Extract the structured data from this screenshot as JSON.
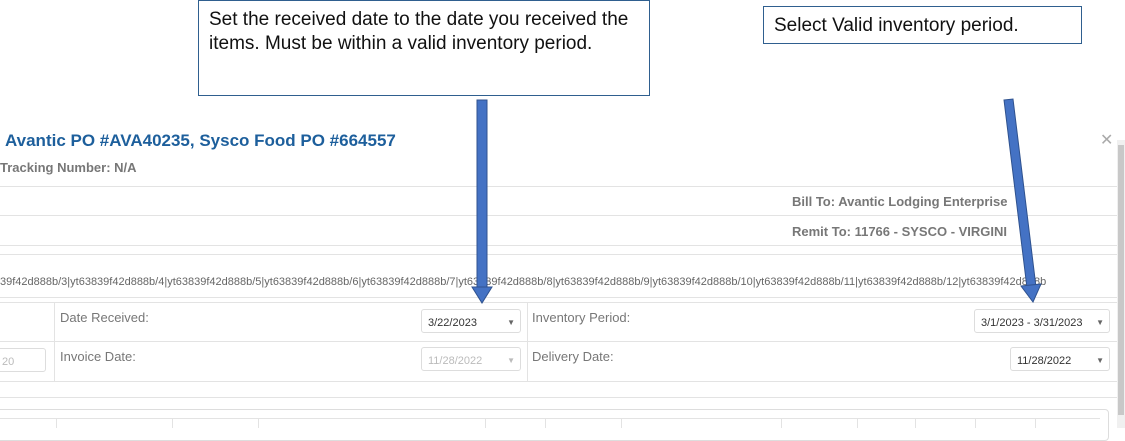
{
  "callouts": [
    {
      "text": "Set the received date to the date you received the items. Must be within a valid inventory period."
    },
    {
      "text": "Select Valid inventory period."
    }
  ],
  "modal": {
    "title": "Avantic PO #AVA40235, Sysco Food PO #664557",
    "tracking": "Tracking Number: N/A",
    "bill_to": "Bill To: Avantic Lodging Enterprise",
    "remit_to": "Remit To: 11766 - SYSCO - VIRGINI",
    "path": "39f42d888b/3|yt63839f42d888b/4|yt63839f42d888b/5|yt63839f42d888b/6|yt63839f42d888b/7|yt63839f42d888b/8|yt63839f42d888b/9|yt63839f42d888b/10|yt63839f42d888b/11|yt63839f42d888b/12|yt63839f42d888b",
    "close_icon": "close-icon",
    "fields": {
      "left_input_value": "20",
      "date_received_label": "Date Received:",
      "date_received_value": "3/22/2023",
      "inventory_period_label": "Inventory Period:",
      "inventory_period_value": "3/1/2023 - 3/31/2023",
      "invoice_date_label": "Invoice Date:",
      "invoice_date_value": "11/28/2022",
      "delivery_date_label": "Delivery Date:",
      "delivery_date_value": "11/28/2022"
    }
  },
  "colors": {
    "title": "#1d5f9c",
    "arrow": "#4472c4",
    "callout_border": "#2f5f8f"
  }
}
